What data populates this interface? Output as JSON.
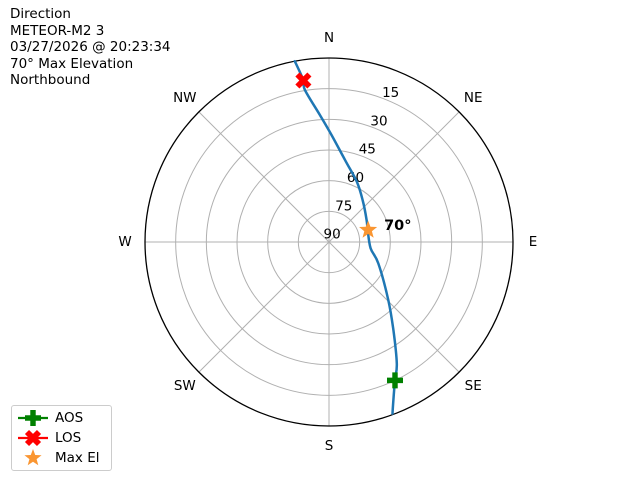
{
  "header": {
    "lines": [
      "Direction",
      "METEOR-M2 3",
      "03/27/2026 @ 20:23:34",
      "70° Max Elevation",
      "Northbound"
    ]
  },
  "colors": {
    "track": "#1f77b4",
    "grid": "#b0b0b0",
    "outline": "#000000",
    "aos": "#008000",
    "los": "#ff0000",
    "max_el": "#fa9632"
  },
  "legend": {
    "items": [
      {
        "label": "AOS",
        "marker": "plus",
        "color": "#008000",
        "line": true
      },
      {
        "label": "LOS",
        "marker": "x",
        "color": "#ff0000",
        "line": true
      },
      {
        "label": "Max El",
        "marker": "star",
        "color": "#fa9632",
        "line": false
      }
    ]
  },
  "chart_data": {
    "type": "polar_sky_track",
    "title": "Direction",
    "satellite": "METEOR-M2 3",
    "pass_time": "03/27/2026 @ 20:23:34",
    "max_elevation_deg": 70,
    "direction": "Northbound",
    "elevation_range": [
      0,
      90
    ],
    "elevation_ticks": [
      15,
      30,
      45,
      60,
      75,
      90
    ],
    "tick_label_azimuth_deg": 22.5,
    "compass": [
      {
        "label": "N",
        "az": 0
      },
      {
        "label": "NE",
        "az": 45
      },
      {
        "label": "E",
        "az": 90
      },
      {
        "label": "SE",
        "az": 135
      },
      {
        "label": "S",
        "az": 180
      },
      {
        "label": "SW",
        "az": 225
      },
      {
        "label": "W",
        "az": 270
      },
      {
        "label": "NW",
        "az": 315
      }
    ],
    "track": {
      "color": "#1f77b4",
      "points_az_el": [
        [
          159.7,
          0.5
        ],
        [
          157.8,
          6.6
        ],
        [
          154.5,
          15.0
        ],
        [
          150.8,
          22.0
        ],
        [
          143.8,
          36.7
        ],
        [
          134.4,
          49.4
        ],
        [
          113.4,
          63.7
        ],
        [
          98.6,
          69.4
        ],
        [
          72.8,
          70.2
        ],
        [
          59.7,
          68.7
        ],
        [
          38.7,
          63.7
        ],
        [
          24.7,
          57.5
        ],
        [
          11.0,
          49.1
        ],
        [
          1.4,
          37.7
        ],
        [
          355.9,
          27.7
        ],
        [
          351.0,
          14.7
        ],
        [
          351.0,
          9.9
        ],
        [
          349.3,
          0.0
        ]
      ]
    },
    "markers": [
      {
        "name": "AOS",
        "shape": "plus",
        "color": "#008000",
        "az": 154.5,
        "el": 15
      },
      {
        "name": "LOS",
        "shape": "x",
        "color": "#ff0000",
        "az": 351.0,
        "el": 10
      },
      {
        "name": "Max El",
        "shape": "star",
        "color": "#fa9632",
        "az": 73.0,
        "el": 70,
        "annotation": "70°"
      }
    ]
  }
}
